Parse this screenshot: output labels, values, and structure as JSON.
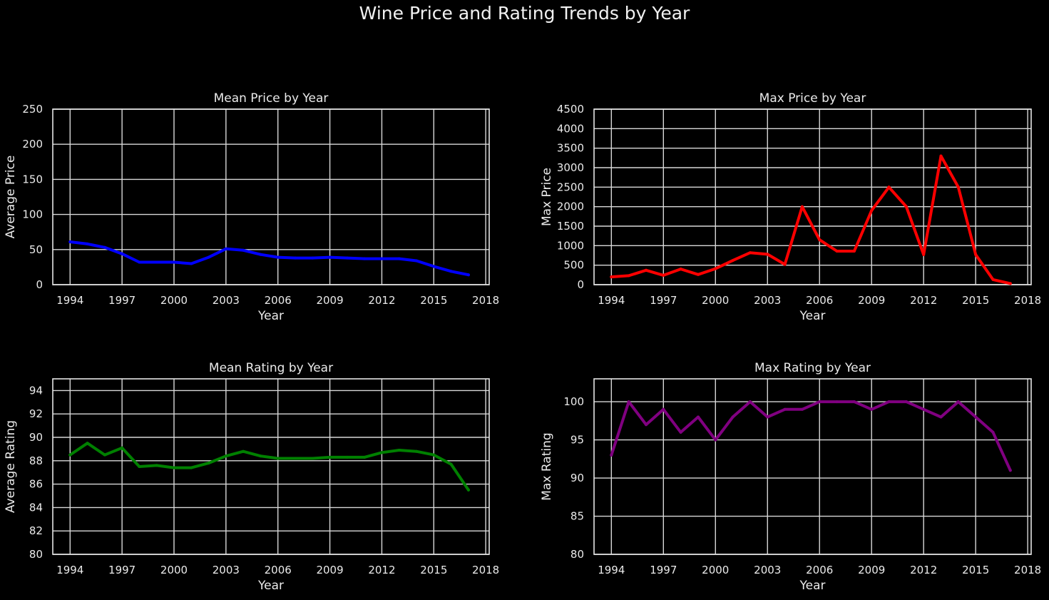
{
  "figure": {
    "title": "Wine Price and Rating Trends by Year",
    "background": "#000000",
    "grid_color": "#d8d8d8"
  },
  "chart_data": [
    {
      "type": "line",
      "title": "Mean Price by Year",
      "xlabel": "Year",
      "ylabel": "Average Price",
      "xlim": [
        1993,
        2018.2
      ],
      "ylim": [
        0,
        250
      ],
      "xticks": [
        1994,
        1997,
        2000,
        2003,
        2006,
        2009,
        2012,
        2015,
        2018
      ],
      "yticks": [
        0,
        50,
        100,
        150,
        200,
        250
      ],
      "grid": true,
      "color": "#0000ff",
      "series": [
        {
          "x": [
            1994,
            1995,
            1996,
            1997,
            1998,
            1999,
            2000,
            2001,
            2002,
            2003,
            2004,
            2005,
            2006,
            2007,
            2008,
            2009,
            2010,
            2011,
            2012,
            2013,
            2014,
            2015,
            2016,
            2017
          ],
          "values": [
            61,
            58,
            53,
            44,
            32,
            32,
            32,
            30,
            39,
            51,
            49,
            43,
            39,
            38,
            38,
            39,
            38,
            37,
            37,
            37,
            34,
            26,
            19,
            14
          ]
        }
      ]
    },
    {
      "type": "line",
      "title": "Max Price by Year",
      "xlabel": "Year",
      "ylabel": "Max Price",
      "xlim": [
        1993,
        2018.2
      ],
      "ylim": [
        0,
        4500
      ],
      "xticks": [
        1994,
        1997,
        2000,
        2003,
        2006,
        2009,
        2012,
        2015,
        2018
      ],
      "yticks": [
        0,
        500,
        1000,
        1500,
        2000,
        2500,
        3000,
        3500,
        4000,
        4500
      ],
      "grid": true,
      "color": "#ff0000",
      "series": [
        {
          "x": [
            1994,
            1995,
            1996,
            1997,
            1998,
            1999,
            2000,
            2001,
            2002,
            2003,
            2004,
            2005,
            2006,
            2007,
            2008,
            2009,
            2010,
            2011,
            2012,
            2013,
            2014,
            2015,
            2016,
            2017
          ],
          "values": [
            200,
            230,
            370,
            240,
            400,
            260,
            410,
            620,
            820,
            780,
            520,
            2000,
            1150,
            860,
            860,
            1900,
            2500,
            2000,
            770,
            3300,
            2500,
            770,
            130,
            30
          ]
        }
      ]
    },
    {
      "type": "line",
      "title": "Mean Rating by Year",
      "xlabel": "Year",
      "ylabel": "Average Rating",
      "xlim": [
        1993,
        2018.2
      ],
      "ylim": [
        80,
        95
      ],
      "xticks": [
        1994,
        1997,
        2000,
        2003,
        2006,
        2009,
        2012,
        2015,
        2018
      ],
      "yticks": [
        80,
        82,
        84,
        86,
        88,
        90,
        92,
        94
      ],
      "grid": true,
      "color": "#008000",
      "series": [
        {
          "x": [
            1994,
            1995,
            1996,
            1997,
            1998,
            1999,
            2000,
            2001,
            2002,
            2003,
            2004,
            2005,
            2006,
            2007,
            2008,
            2009,
            2010,
            2011,
            2012,
            2013,
            2014,
            2015,
            2016,
            2017
          ],
          "values": [
            88.5,
            89.5,
            88.5,
            89.1,
            87.5,
            87.6,
            87.4,
            87.4,
            87.8,
            88.4,
            88.8,
            88.4,
            88.2,
            88.2,
            88.2,
            88.3,
            88.3,
            88.3,
            88.7,
            88.9,
            88.8,
            88.5,
            87.7,
            85.5
          ]
        }
      ]
    },
    {
      "type": "line",
      "title": "Max Rating by Year",
      "xlabel": "Year",
      "ylabel": "Max Rating",
      "xlim": [
        1993,
        2018.2
      ],
      "ylim": [
        80,
        103
      ],
      "xticks": [
        1994,
        1997,
        2000,
        2003,
        2006,
        2009,
        2012,
        2015,
        2018
      ],
      "yticks": [
        80,
        85,
        90,
        95,
        100
      ],
      "grid": true,
      "color": "#800080",
      "series": [
        {
          "x": [
            1994,
            1995,
            1996,
            1997,
            1998,
            1999,
            2000,
            2001,
            2002,
            2003,
            2004,
            2005,
            2006,
            2007,
            2008,
            2009,
            2010,
            2011,
            2012,
            2013,
            2014,
            2015,
            2016,
            2017
          ],
          "values": [
            93,
            100,
            97,
            99,
            96,
            98,
            95,
            98,
            100,
            98,
            99,
            99,
            100,
            100,
            100,
            99,
            100,
            100,
            99,
            98,
            100,
            98,
            96,
            91
          ]
        }
      ]
    }
  ]
}
